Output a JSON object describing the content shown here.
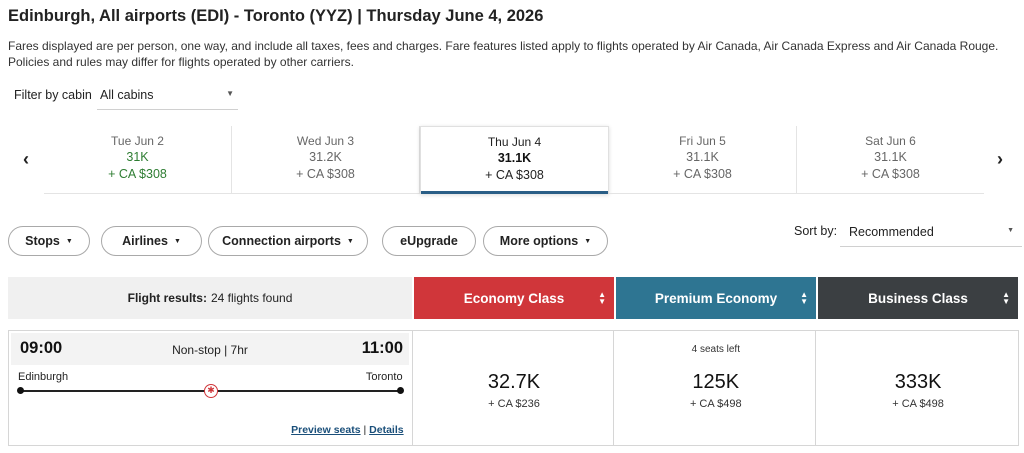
{
  "header": {
    "title": "Edinburgh, All airports (EDI) - Toronto (YYZ)  |  Thursday June 4, 2026",
    "disclaimer": "Fares displayed are per person, one way, and include all taxes, fees and charges. Fare features listed apply to flights operated by Air Canada, Air Canada Express and Air Canada Rouge. Policies and rules may differ for flights operated by other carriers."
  },
  "cabin_filter": {
    "label": "Filter by cabin",
    "value": "All cabins"
  },
  "date_strip": {
    "days": [
      {
        "date": "Tue Jun 2",
        "points": "31K",
        "cash": "+ CA $308",
        "lowest": true,
        "selected": false
      },
      {
        "date": "Wed Jun 3",
        "points": "31.2K",
        "cash": "+ CA $308",
        "lowest": false,
        "selected": false
      },
      {
        "date": "Thu Jun 4",
        "points": "31.1K",
        "cash": "+ CA $308",
        "lowest": false,
        "selected": true
      },
      {
        "date": "Fri Jun 5",
        "points": "31.1K",
        "cash": "+ CA $308",
        "lowest": false,
        "selected": false
      },
      {
        "date": "Sat Jun 6",
        "points": "31.1K",
        "cash": "+ CA $308",
        "lowest": false,
        "selected": false
      }
    ]
  },
  "filters": {
    "stops": "Stops",
    "airlines": "Airlines",
    "connection": "Connection airports",
    "eupgrade": "eUpgrade",
    "more": "More options"
  },
  "sort": {
    "label": "Sort by:",
    "value": "Recommended"
  },
  "results": {
    "label": "Flight results:",
    "count": "24 flights found",
    "cabins": [
      "Economy Class",
      "Premium Economy",
      "Business Class"
    ]
  },
  "flight": {
    "departure_time": "09:00",
    "arrival_time": "11:00",
    "stops": "Non-stop | 7hr",
    "origin": "Edinburgh",
    "destination": "Toronto",
    "preview_seats": "Preview seats",
    "separator": "|",
    "details": "Details",
    "fares": [
      {
        "seats": "",
        "points": "32.7K",
        "cash": "+ CA $236"
      },
      {
        "seats": "4 seats left",
        "points": "125K",
        "cash": "+ CA $498"
      },
      {
        "seats": "",
        "points": "333K",
        "cash": "+ CA $498"
      }
    ]
  },
  "colors": {
    "economy": "#d0363a",
    "premium": "#2e7592",
    "business": "#3b3f42",
    "lowest_fare": "#2e7d32",
    "selected_underline": "#2a5e86"
  },
  "icons": {
    "prev": "chevron-left-icon",
    "next": "chevron-right-icon",
    "logo": "maple-leaf-icon"
  }
}
